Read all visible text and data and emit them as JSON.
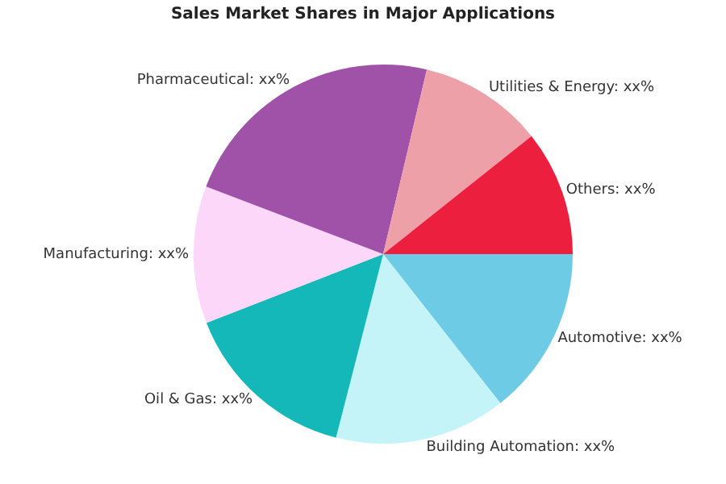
{
  "chart_data": {
    "type": "pie",
    "title": "Sales Market Shares in Major Applications",
    "categories": [
      "Automotive",
      "Building Automation",
      "Oil & Gas",
      "Manufacturing",
      "Pharmaceutical",
      "Utilities & Energy",
      "Others"
    ],
    "values": [
      14.4,
      14.6,
      15.1,
      11.7,
      22.9,
      10.6,
      10.7
    ],
    "value_labels": [
      "xx%",
      "xx%",
      "xx%",
      "xx%",
      "xx%",
      "xx%",
      "xx%"
    ],
    "colors": [
      "#6dcbe6",
      "#c4f4f7",
      "#14b8b8",
      "#fcd7fa",
      "#a052a8",
      "#eda0a8",
      "#ed1f3f"
    ],
    "legend": false
  }
}
